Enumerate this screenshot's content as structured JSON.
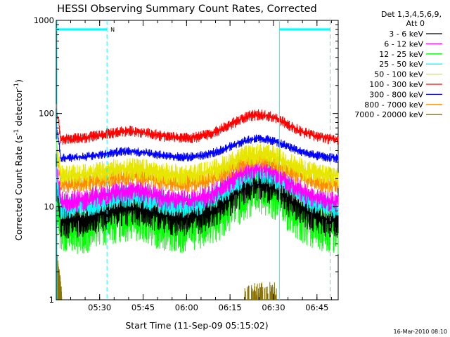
{
  "chart_data": {
    "type": "line",
    "title": "HESSI Observing Summary Count Rates, Corrected",
    "xlabel": "Start Time (11-Sep-09 05:15:02)",
    "ylabel_main": "Corrected Count Rate (s",
    "ylabel_exp1": "-1",
    "ylabel_mid": " detector",
    "ylabel_exp2": "-1",
    "ylabel_close": ")",
    "y_scale": "log",
    "ylim": [
      1,
      1000
    ],
    "xlim_minutes": [
      0,
      97.3
    ],
    "xticks": [
      {
        "label": "05:30",
        "minute": 14.97
      },
      {
        "label": "05:45",
        "minute": 29.97
      },
      {
        "label": "06:00",
        "minute": 44.97
      },
      {
        "label": "06:15",
        "minute": 59.97
      },
      {
        "label": "06:30",
        "minute": 74.97
      },
      {
        "label": "06:45",
        "minute": 89.97
      }
    ],
    "yticks": [
      {
        "label": "1",
        "value": 1
      },
      {
        "label": "10",
        "value": 10
      },
      {
        "label": "100",
        "value": 100
      },
      {
        "label": "1000",
        "value": 1000
      }
    ],
    "legend_header": [
      "Det 1,3,4,5,6,9,",
      "Att 0"
    ],
    "legend_position": "right",
    "series": [
      {
        "name": "3 - 6 keV",
        "color": "#000000",
        "base": 7.0,
        "amp": 1.35,
        "noise": 0.2
      },
      {
        "name": "6 - 12 keV",
        "color": "#ff00ff",
        "base": 11.0,
        "amp": 1.25,
        "noise": 0.12
      },
      {
        "name": "12 - 25 keV",
        "color": "#00ff00",
        "base": 5.5,
        "amp": 1.45,
        "noise": 0.28
      },
      {
        "name": "25 - 50 keV",
        "color": "#00ffff",
        "base": 9.5,
        "amp": 1.25,
        "noise": 0.12
      },
      {
        "name": "50 - 100 keV",
        "color": "#e6e600",
        "base": 21.0,
        "amp": 0.8,
        "noise": 0.12
      },
      {
        "name": "100 - 300 keV",
        "color": "#ff0000",
        "base": 52.0,
        "amp": 0.9,
        "noise": 0.06
      },
      {
        "name": "300 - 800 keV",
        "color": "#0000ff",
        "base": 33.0,
        "amp": 0.7,
        "noise": 0.05
      },
      {
        "name": "800 - 7000 keV",
        "color": "#ff8c00",
        "base": 17.0,
        "amp": 0.9,
        "noise": 0.1
      },
      {
        "name": "7000 - 20000 keV",
        "color": "#8b7500",
        "base": 1.0,
        "amp": 0,
        "noise": 0
      }
    ],
    "profile": {
      "bumps": [
        {
          "center_minute": 25,
          "width_minutes": 9,
          "height": 0.35
        },
        {
          "center_minute": 70,
          "width_minutes": 10,
          "height": 1.0
        }
      ],
      "initial_spike_minutes": 1.5
    },
    "flags": [
      {
        "label": "N",
        "start_minute": 0,
        "end_minute": 17.5,
        "value": 800,
        "color": "#00ffff"
      },
      {
        "label": "",
        "start_minute": 77,
        "end_minute": 94.5,
        "value": 800,
        "color": "#00ffff"
      }
    ],
    "night_boundaries": [
      {
        "minute": 17.5,
        "style": "dashed"
      },
      {
        "minute": 77,
        "style": "solid"
      },
      {
        "minute": 94.5,
        "style": "dashed"
      }
    ],
    "timestamp": "16-Mar-2010 08:10"
  }
}
